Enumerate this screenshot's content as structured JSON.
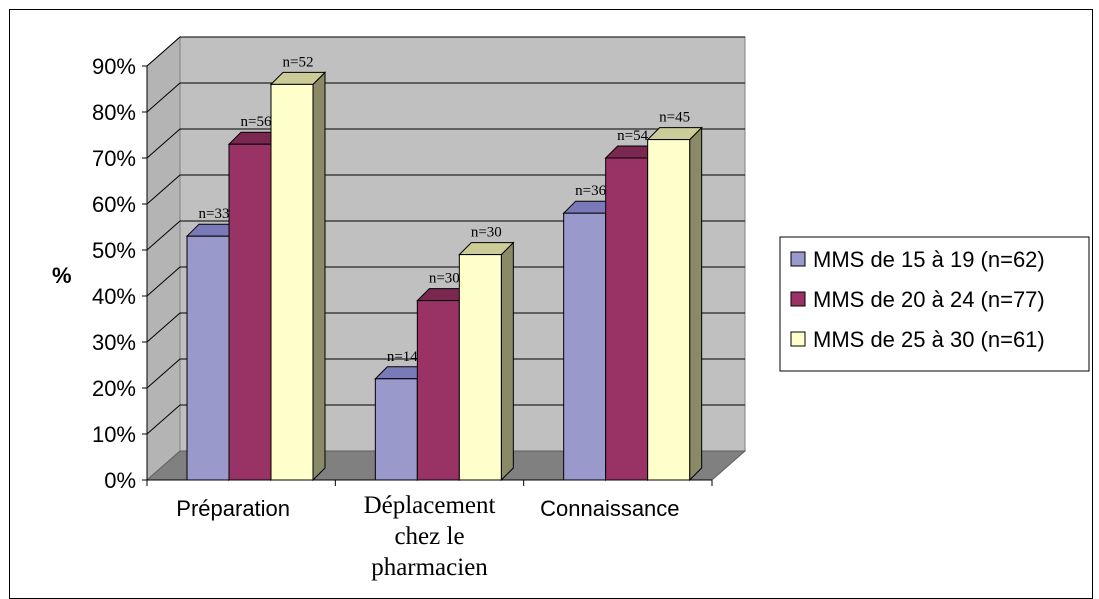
{
  "chart_data": {
    "type": "bar",
    "ylabel": "%",
    "ylim": [
      0,
      90
    ],
    "yticks": [
      "0%",
      "10%",
      "20%",
      "30%",
      "40%",
      "50%",
      "60%",
      "70%",
      "80%",
      "90%"
    ],
    "categories": [
      {
        "lines": [
          "Préparation"
        ],
        "style": "sans"
      },
      {
        "lines": [
          "Déplacement",
          "chez le",
          "pharmacien"
        ],
        "style": "serif"
      },
      {
        "lines": [
          "Connaissance"
        ],
        "style": "sans"
      }
    ],
    "grid": true,
    "legend_position": "right",
    "series": [
      {
        "name": "MMS de 15 à 19 (n=62)",
        "values": [
          53,
          22,
          58
        ],
        "labels": [
          "n=33",
          "n=14",
          "n=36"
        ],
        "color": "#9999cc",
        "side": "#6d6da3",
        "top": "#7a7ab8"
      },
      {
        "name": "MMS de 20 à 24 (n=77)",
        "values": [
          73,
          39,
          70
        ],
        "labels": [
          "n=56",
          "n=30",
          "n=54"
        ],
        "color": "#993366",
        "side": "#6a2146",
        "top": "#7a2850"
      },
      {
        "name": "MMS de 25 à 30 (n=61)",
        "values": [
          86,
          49,
          74
        ],
        "labels": [
          "n=52",
          "n=30",
          "n=45"
        ],
        "color": "#ffffcc",
        "side": "#8a8a66",
        "top": "#cccc99"
      }
    ]
  }
}
